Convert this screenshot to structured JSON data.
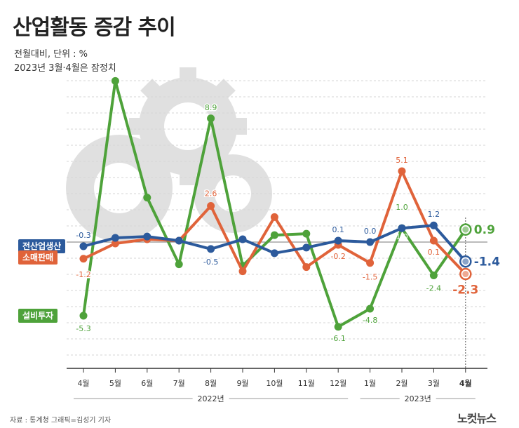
{
  "title": "산업활동 증감 추이",
  "subtitle": "전월대비, 단위 : %\n2023년 3월·4월은 잠정치",
  "source": "자료 : 통계청    그래픽=김성기 기자",
  "brand": "노컷뉴스",
  "chart_data": {
    "type": "line",
    "categories": [
      "4월",
      "5월",
      "6월",
      "7월",
      "8월",
      "9월",
      "10월",
      "11월",
      "12월",
      "1월",
      "2월",
      "3월",
      "4월"
    ],
    "year_groups": [
      {
        "label": "2022년",
        "from": 0,
        "to": 8
      },
      {
        "label": "2023년",
        "from": 9,
        "to": 12
      }
    ],
    "series": [
      {
        "name": "전산업생산",
        "color": "#2c5a9c",
        "values": [
          -0.3,
          0.3,
          0.4,
          0.1,
          -0.5,
          0.2,
          -0.8,
          -0.4,
          0.1,
          0.0,
          1.0,
          1.2,
          -1.4
        ],
        "labels": [
          {
            "i": 0,
            "text": "-0.3"
          },
          {
            "i": 4,
            "text": "-0.5"
          },
          {
            "i": 8,
            "text": "0.1"
          },
          {
            "i": 9,
            "text": "0.0"
          },
          {
            "i": 11,
            "text": "1.2"
          }
        ],
        "end_label": "-1.4"
      },
      {
        "name": "소매판매",
        "color": "#e0633a",
        "values": [
          -1.2,
          -0.1,
          0.2,
          0.1,
          2.6,
          -2.1,
          1.8,
          -1.8,
          -0.2,
          -1.5,
          5.1,
          0.1,
          -2.3
        ],
        "labels": [
          {
            "i": 0,
            "text": "-1.2"
          },
          {
            "i": 4,
            "text": "2.6"
          },
          {
            "i": 8,
            "text": "-0.2"
          },
          {
            "i": 9,
            "text": "-1.5"
          },
          {
            "i": 10,
            "text": "5.1"
          },
          {
            "i": 11,
            "text": "0.1"
          }
        ],
        "end_label": "-2.3"
      },
      {
        "name": "설비투자",
        "color": "#4ea23a",
        "values": [
          -5.3,
          11.6,
          3.2,
          -1.6,
          8.9,
          -1.7,
          0.5,
          0.6,
          -6.1,
          -4.8,
          1.0,
          -2.4,
          0.9
        ],
        "labels": [
          {
            "i": 0,
            "text": "-5.3"
          },
          {
            "i": 4,
            "text": "8.9"
          },
          {
            "i": 8,
            "text": "-6.1"
          },
          {
            "i": 9,
            "text": "-4.8"
          },
          {
            "i": 10,
            "text": "1.0"
          },
          {
            "i": 11,
            "text": "-2.4"
          }
        ],
        "end_label": "0.9"
      }
    ]
  }
}
